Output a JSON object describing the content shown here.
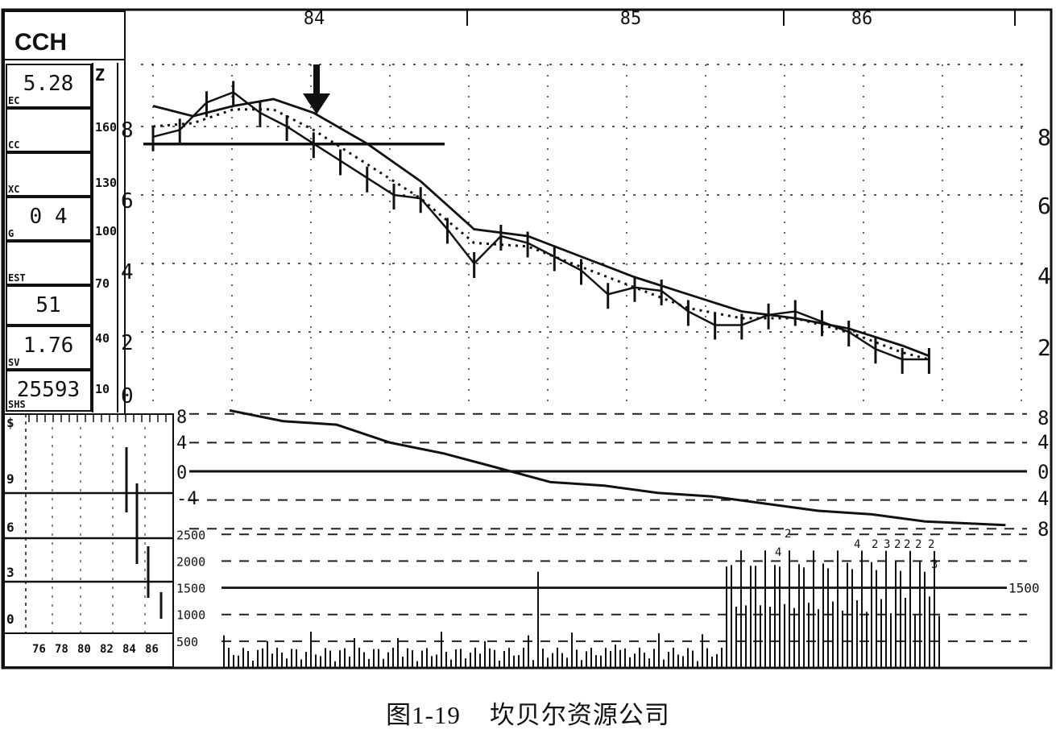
{
  "caption": {
    "figure_no": "图1-19",
    "title": "坎贝尔资源公司"
  },
  "side_panel": {
    "ticker": "CCH",
    "fields": [
      {
        "value": "5.28",
        "label": "EC"
      },
      {
        "value": "",
        "label": "CC"
      },
      {
        "value": "",
        "label": "XC"
      },
      {
        "value": "0 4",
        "label": "G"
      },
      {
        "value": "",
        "label": "EST"
      },
      {
        "value": "51",
        "label": ""
      },
      {
        "value": "1.76",
        "label": "SV"
      },
      {
        "value": "25593",
        "label": "SHS"
      }
    ],
    "scale_labels": [
      "Z",
      "160",
      "130",
      "100",
      "70",
      "40",
      "10"
    ]
  },
  "chart_data": {
    "type": "line",
    "title": "",
    "x_ticks": [
      "84",
      "85",
      "86"
    ],
    "price": {
      "y_ticks_left": [
        "8",
        "6",
        "4",
        "2",
        "0"
      ],
      "y_ticks_right": [
        "8",
        "6",
        "4",
        "2"
      ],
      "ylim": [
        0,
        10
      ],
      "support_line_level": 7.5,
      "series": [
        {
          "style": "price-bars",
          "x": [
            83.6,
            83.7,
            83.8,
            83.9,
            84.0,
            84.1,
            84.2,
            84.3,
            84.4,
            84.5,
            84.6,
            84.7,
            84.8,
            84.9,
            85.0,
            85.1,
            85.2,
            85.3,
            85.4,
            85.5,
            85.6,
            85.7,
            85.8,
            85.9,
            86.0,
            86.1,
            86.2,
            86.3,
            86.4,
            86.5
          ],
          "y": [
            7.7,
            7.9,
            8.7,
            9.0,
            8.4,
            8.0,
            7.5,
            7.0,
            6.5,
            6.0,
            5.9,
            5.0,
            4.0,
            4.8,
            4.6,
            4.2,
            3.8,
            3.1,
            3.3,
            3.2,
            2.6,
            2.2,
            2.2,
            2.5,
            2.6,
            2.3,
            2.0,
            1.5,
            1.2,
            1.2
          ]
        },
        {
          "style": "solid",
          "x": [
            83.6,
            83.75,
            83.9,
            84.05,
            84.2,
            84.4,
            84.6,
            84.8,
            85.0,
            85.2,
            85.4,
            85.6,
            85.8,
            86.0,
            86.2,
            86.4,
            86.5
          ],
          "y": [
            8.6,
            8.3,
            8.6,
            8.8,
            8.4,
            7.5,
            6.4,
            5.0,
            4.8,
            4.2,
            3.6,
            3.1,
            2.6,
            2.4,
            2.1,
            1.6,
            1.3
          ]
        },
        {
          "style": "dotted",
          "x": [
            83.6,
            83.75,
            83.9,
            84.05,
            84.2,
            84.4,
            84.6,
            84.8,
            85.0,
            85.2,
            85.4,
            85.6,
            85.8,
            86.0,
            86.2,
            86.4,
            86.5
          ],
          "y": [
            8.0,
            8.1,
            8.5,
            8.5,
            7.9,
            6.9,
            5.9,
            4.6,
            4.5,
            3.9,
            3.3,
            2.7,
            2.4,
            2.4,
            2.0,
            1.4,
            1.2
          ]
        }
      ]
    },
    "relative_strength": {
      "y_ticks_left": [
        "8",
        "4",
        "0",
        "-4"
      ],
      "y_ticks_right": [
        "8",
        "4",
        "0",
        "4",
        "8"
      ],
      "ylim": [
        -8,
        8
      ],
      "x": [
        83.6,
        83.8,
        84.0,
        84.2,
        84.4,
        84.6,
        84.8,
        85.0,
        85.2,
        85.4,
        85.6,
        85.8,
        86.0,
        86.2,
        86.5
      ],
      "values": [
        8.5,
        7.0,
        6.5,
        4.0,
        2.5,
        0.5,
        -1.5,
        -2.0,
        -3.0,
        -3.5,
        -4.5,
        -5.5,
        -6.0,
        -7.0,
        -7.5
      ]
    },
    "volume": {
      "y_ticks": [
        "2500",
        "2000",
        "1500",
        "1000",
        "500"
      ],
      "reference_label": "1500",
      "ylim": [
        0,
        2700
      ],
      "annotations": [
        "2",
        "4",
        "4",
        "2",
        "3",
        "2",
        "2",
        "2",
        "2",
        "3"
      ]
    },
    "inset": {
      "y_ticks": [
        "$",
        "9",
        "6",
        "3",
        "0"
      ],
      "x_ticks": [
        "76",
        "78",
        "80",
        "82",
        "84",
        "86"
      ]
    }
  }
}
